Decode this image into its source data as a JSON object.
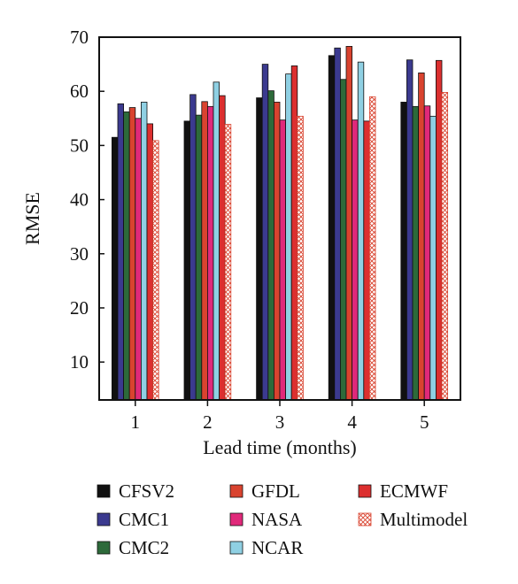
{
  "chart_data": {
    "type": "bar",
    "xlabel": "Lead time (months)",
    "ylabel": "RMSE",
    "ylim": [
      3,
      70
    ],
    "yticks": [
      10,
      20,
      30,
      40,
      50,
      60,
      70
    ],
    "categories": [
      "1",
      "2",
      "3",
      "4",
      "5"
    ],
    "grid": false,
    "legend_position": "bottom",
    "series": [
      {
        "name": "CFSV2",
        "color": "#111111",
        "pattern": "solid",
        "values": [
          51.5,
          54.5,
          58.8,
          66.6,
          58.0
        ]
      },
      {
        "name": "CMC1",
        "color": "#3b3a8f",
        "pattern": "solid",
        "values": [
          57.7,
          59.4,
          65.0,
          68.0,
          65.8
        ]
      },
      {
        "name": "CMC2",
        "color": "#2d6a3a",
        "pattern": "solid",
        "values": [
          56.2,
          55.6,
          60.1,
          62.2,
          57.2
        ]
      },
      {
        "name": "GFDL",
        "color": "#d9432f",
        "pattern": "solid",
        "values": [
          57.0,
          58.1,
          58.0,
          68.3,
          63.4
        ]
      },
      {
        "name": "NASA",
        "color": "#e0297a",
        "pattern": "solid",
        "values": [
          55.0,
          57.2,
          54.7,
          54.7,
          57.3
        ]
      },
      {
        "name": "NCAR",
        "color": "#8fd0e3",
        "pattern": "solid",
        "values": [
          58.0,
          61.7,
          63.2,
          65.4,
          55.4
        ]
      },
      {
        "name": "ECMWF",
        "color": "#dc2f2f",
        "pattern": "solid",
        "values": [
          54.0,
          59.2,
          64.7,
          54.5,
          65.7
        ]
      },
      {
        "name": "Multimodel",
        "color": "#d9432f",
        "pattern": "crosshatch",
        "values": [
          50.9,
          53.9,
          55.4,
          59.0,
          59.8
        ]
      }
    ]
  }
}
